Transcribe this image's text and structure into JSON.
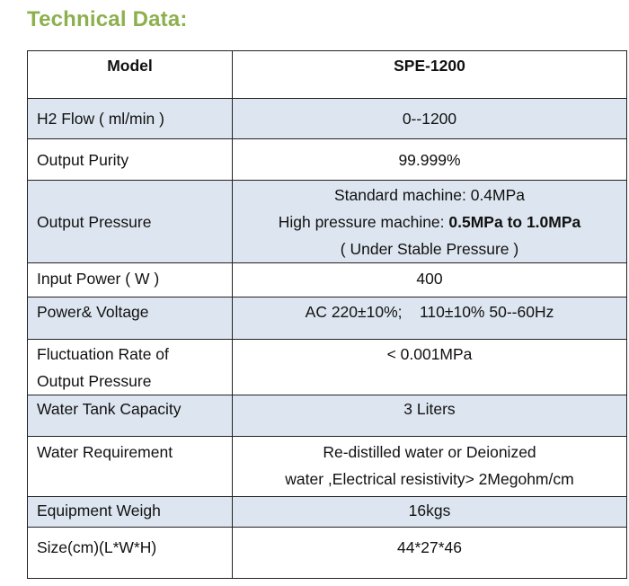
{
  "heading": "Technical Data:",
  "table": {
    "header": {
      "label": "Model",
      "value": "SPE-1200"
    },
    "rows": [
      {
        "label": "H2 Flow ( ml/min )",
        "value": "0--1200"
      },
      {
        "label": "Output Purity",
        "value": "99.999%"
      },
      {
        "label": "Output Pressure",
        "line1": "Standard machine: 0.4MPa",
        "line2_prefix": "High pressure machine: ",
        "line2_bold": "0.5MPa to 1.0MPa",
        "line3": "( Under Stable Pressure )"
      },
      {
        "label": "Input Power ( W )",
        "value": "400"
      },
      {
        "label": "Power& Voltage",
        "value": "AC 220±10%;    110±10% 50--60Hz"
      },
      {
        "label_line1": "Fluctuation Rate of",
        "label_line2": "Output Pressure",
        "value": "< 0.001MPa"
      },
      {
        "label": "Water Tank Capacity",
        "value": "3 Liters"
      },
      {
        "label": "Water Requirement",
        "line1": "Re-distilled water or Deionized",
        "line2": "water ,Electrical resistivity> 2Megohm/cm"
      },
      {
        "label": "Equipment Weigh",
        "value": "16kgs"
      },
      {
        "label": "Size(cm)(L*W*H)",
        "value": "44*27*46"
      }
    ]
  },
  "colors": {
    "heading": "#8db04e",
    "shade": "#dde6f0",
    "border": "#222222"
  }
}
